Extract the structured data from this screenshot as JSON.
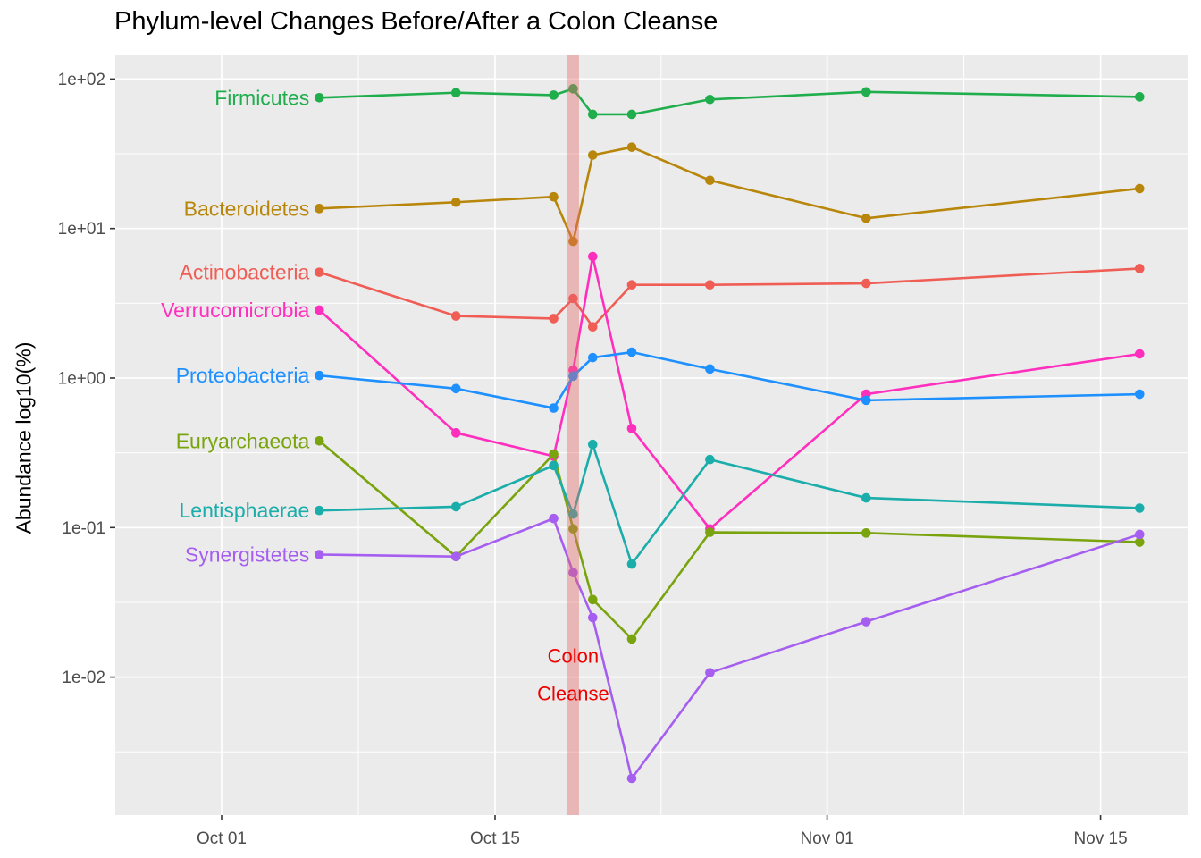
{
  "title": "Phylum-level Changes Before/After a Colon Cleanse",
  "y_axis": {
    "label": "Abundance log10(%)",
    "ticks": [
      {
        "label": "1e+02",
        "value": 100
      },
      {
        "label": "1e+01",
        "value": 10
      },
      {
        "label": "1e+00",
        "value": 1
      },
      {
        "label": "1e-01",
        "value": 0.1
      },
      {
        "label": "1e-02",
        "value": 0.01
      }
    ],
    "minor_values": [
      31.623,
      3.1623,
      0.31623,
      0.031623,
      0.0031623
    ]
  },
  "x_axis": {
    "ticks": [
      {
        "label": "Oct 01",
        "day": 0
      },
      {
        "label": "Oct 15",
        "day": 14
      },
      {
        "label": "Nov 01",
        "day": 31
      },
      {
        "label": "Nov 15",
        "day": 45
      }
    ],
    "minor_days": [
      7,
      22.5,
      38
    ]
  },
  "event_band": {
    "day_start": 17.7,
    "day_end": 18.3,
    "fill": "rgba(229,102,102,0.40)"
  },
  "annotation": {
    "lines": [
      "Colon",
      "Cleanse"
    ],
    "day": 18,
    "at_values": [
      0.0125,
      0.007
    ],
    "color": "#EE0000"
  },
  "chart_data": {
    "type": "line",
    "title": "Phylum-level Changes Before/After a Colon Cleanse",
    "xlabel": "",
    "ylabel": "Abundance log10(%)",
    "yscale": "log10",
    "ylim": [
      0.0012,
      140
    ],
    "grid": "on",
    "legend_position": "direct-labels-left",
    "x_dates": [
      "Oct 06",
      "Oct 13",
      "Oct 18",
      "Oct 19",
      "Oct 20",
      "Oct 22",
      "Oct 26",
      "Nov 03",
      "Nov 17"
    ],
    "x_days": [
      5,
      12,
      17,
      18,
      19,
      21,
      25,
      33,
      47
    ],
    "series": [
      {
        "name": "Firmicutes",
        "color": "#20AE4D",
        "values": [
          75,
          81,
          78,
          86,
          58,
          58,
          73,
          82,
          76
        ]
      },
      {
        "name": "Bacteroidetes",
        "color": "#B8860B",
        "values": [
          13.6,
          15,
          16.3,
          8.2,
          31,
          35,
          21,
          11.7,
          18.5
        ]
      },
      {
        "name": "Actinobacteria",
        "color": "#EF5D55",
        "values": [
          5.1,
          2.6,
          2.5,
          3.4,
          2.2,
          4.2,
          4.2,
          4.3,
          5.4
        ]
      },
      {
        "name": "Verrucomicrobia",
        "color": "#FF2FBE",
        "values": [
          2.85,
          0.43,
          0.3,
          1.13,
          6.5,
          0.46,
          0.098,
          0.78,
          1.45
        ]
      },
      {
        "name": "Proteobacteria",
        "color": "#1E90FF",
        "values": [
          1.04,
          0.85,
          0.63,
          1.03,
          1.37,
          1.49,
          1.15,
          0.71,
          0.78
        ]
      },
      {
        "name": "Euryarchaeota",
        "color": "#7AA40E",
        "values": [
          0.38,
          0.064,
          0.31,
          0.098,
          0.033,
          0.018,
          0.093,
          0.092,
          0.08
        ]
      },
      {
        "name": "Lentisphaerae",
        "color": "#1BADAA",
        "values": [
          0.13,
          0.138,
          0.26,
          0.123,
          0.36,
          0.057,
          0.285,
          0.158,
          0.135
        ]
      },
      {
        "name": "Synergistetes",
        "color": "#A55EEF",
        "values": [
          0.066,
          0.064,
          0.115,
          0.05,
          0.025,
          0.0021,
          0.0107,
          0.0235,
          0.09
        ]
      }
    ]
  }
}
